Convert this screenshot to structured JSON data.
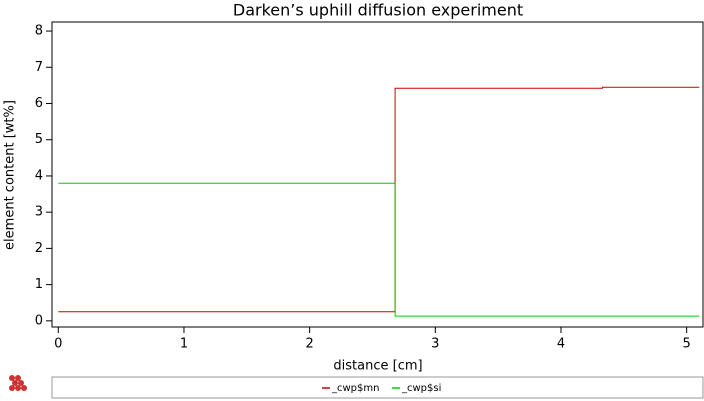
{
  "chart_data": {
    "type": "line",
    "title": "Darken’s uphill diffusion experiment",
    "x_label": "distance [cm]",
    "y_label": "element content [wt%]",
    "xlim": [
      -0.05,
      5.13
    ],
    "ylim": [
      -0.17,
      8.25
    ],
    "xticks": [
      0,
      1,
      2,
      3,
      4,
      5
    ],
    "yticks": [
      0,
      1,
      2,
      3,
      4,
      5,
      6,
      7,
      8
    ],
    "series": [
      {
        "name": "_cwp$mn",
        "color": "#cc0000",
        "x": [
          0,
          2.68,
          2.68,
          4.33,
          4.33,
          5.1
        ],
        "values": [
          0.25,
          0.25,
          6.42,
          6.42,
          6.45,
          6.45
        ]
      },
      {
        "name": "_cwp$si",
        "color": "#00cc00",
        "x": [
          0,
          2.68,
          2.68,
          5.1
        ],
        "values": [
          3.8,
          3.8,
          0.13,
          0.13
        ]
      }
    ]
  }
}
